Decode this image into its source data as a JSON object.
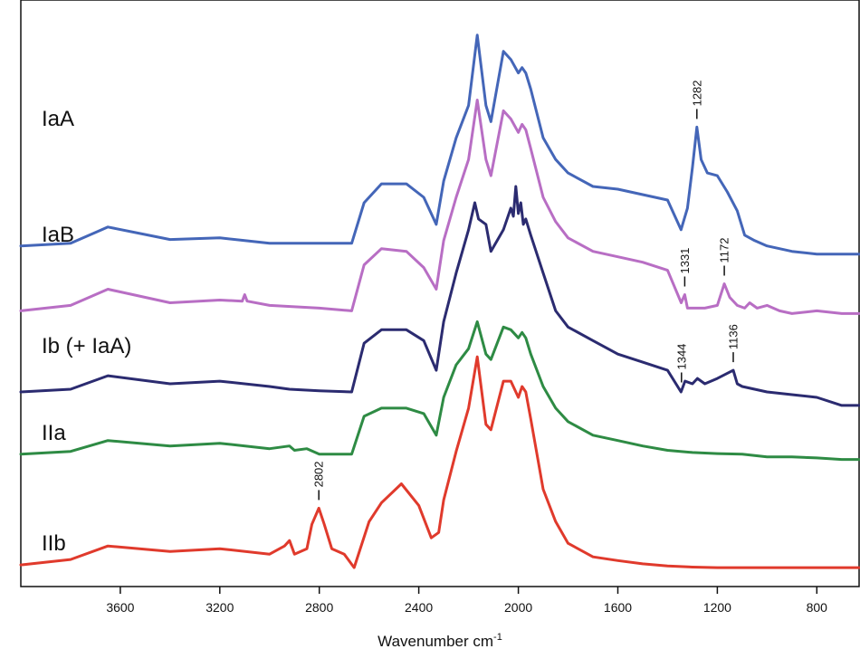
{
  "chart_data": {
    "type": "line",
    "xlabel": "Wavenumber cm",
    "xlabel_superscript": "-1",
    "xlim": [
      4000,
      630
    ],
    "x_reversed": true,
    "y_axis_visible": false,
    "grid": false,
    "xticks": [
      3600,
      3200,
      2800,
      2400,
      2000,
      1600,
      1200,
      800
    ],
    "xtick_labels": [
      "3600",
      "3200",
      "2800",
      "2400",
      "2000",
      "1600",
      "1200",
      "800"
    ],
    "colors": {
      "IaA": "#4466b8",
      "IaB": "#b86ec4",
      "Ib": "#2b2b70",
      "IIa": "#2e8b44",
      "IIb": "#e03a2c"
    },
    "series": [
      {
        "name": "IaA",
        "baseline": 6.0,
        "x": [
          4000,
          3800,
          3650,
          3400,
          3200,
          3100,
          3000,
          2800,
          2670,
          2620,
          2550,
          2450,
          2380,
          2330,
          2300,
          2250,
          2200,
          2165,
          2130,
          2110,
          2060,
          2030,
          2000,
          1985,
          1970,
          1950,
          1900,
          1850,
          1800,
          1700,
          1600,
          1500,
          1400,
          1346,
          1320,
          1300,
          1282,
          1265,
          1240,
          1200,
          1160,
          1120,
          1090,
          1050,
          1000,
          900,
          800,
          700,
          630
        ],
        "values": [
          6.0,
          6.05,
          6.35,
          6.12,
          6.15,
          6.1,
          6.05,
          6.05,
          6.05,
          6.8,
          7.15,
          7.15,
          6.9,
          6.4,
          7.2,
          8.0,
          8.6,
          9.9,
          8.6,
          8.3,
          9.6,
          9.45,
          9.2,
          9.3,
          9.2,
          8.9,
          8.0,
          7.6,
          7.35,
          7.1,
          7.05,
          6.95,
          6.85,
          6.3,
          6.7,
          7.45,
          8.2,
          7.6,
          7.35,
          7.3,
          7.0,
          6.65,
          6.2,
          6.1,
          6.0,
          5.9,
          5.85,
          5.85,
          5.85
        ]
      },
      {
        "name": "IaB",
        "baseline": 4.8,
        "x": [
          4000,
          3800,
          3650,
          3400,
          3200,
          3110,
          3100,
          3090,
          3000,
          2800,
          2670,
          2620,
          2550,
          2450,
          2380,
          2330,
          2300,
          2250,
          2200,
          2165,
          2130,
          2110,
          2060,
          2030,
          2000,
          1985,
          1970,
          1950,
          1900,
          1850,
          1800,
          1700,
          1600,
          1500,
          1400,
          1345,
          1331,
          1320,
          1250,
          1200,
          1172,
          1150,
          1120,
          1090,
          1070,
          1040,
          1000,
          950,
          900,
          800,
          700,
          630
        ],
        "values": [
          4.8,
          4.9,
          5.2,
          4.95,
          5.0,
          4.98,
          5.1,
          4.98,
          4.9,
          4.85,
          4.8,
          5.65,
          5.95,
          5.9,
          5.6,
          5.2,
          6.1,
          6.9,
          7.6,
          8.7,
          7.6,
          7.3,
          8.5,
          8.35,
          8.1,
          8.25,
          8.15,
          7.8,
          6.9,
          6.45,
          6.15,
          5.9,
          5.8,
          5.7,
          5.55,
          4.95,
          5.1,
          4.85,
          4.85,
          4.9,
          5.3,
          5.05,
          4.9,
          4.85,
          4.95,
          4.85,
          4.9,
          4.8,
          4.75,
          4.8,
          4.75,
          4.75
        ]
      },
      {
        "name": "Ib (+ IaA)",
        "baseline": 3.3,
        "x": [
          4000,
          3800,
          3650,
          3400,
          3200,
          3000,
          2920,
          2800,
          2670,
          2620,
          2550,
          2450,
          2380,
          2330,
          2300,
          2250,
          2200,
          2175,
          2160,
          2130,
          2110,
          2060,
          2030,
          2020,
          2010,
          2000,
          1990,
          1980,
          1970,
          1950,
          1900,
          1850,
          1800,
          1700,
          1600,
          1500,
          1400,
          1346,
          1330,
          1300,
          1280,
          1250,
          1200,
          1136,
          1120,
          1100,
          1050,
          1000,
          900,
          800,
          700,
          630
        ],
        "values": [
          3.3,
          3.35,
          3.6,
          3.45,
          3.5,
          3.4,
          3.35,
          3.32,
          3.3,
          4.2,
          4.45,
          4.45,
          4.25,
          3.7,
          4.6,
          5.5,
          6.3,
          6.8,
          6.5,
          6.4,
          5.9,
          6.3,
          6.7,
          6.55,
          7.1,
          6.6,
          6.8,
          6.4,
          6.5,
          6.2,
          5.5,
          4.8,
          4.5,
          4.25,
          4.0,
          3.85,
          3.7,
          3.3,
          3.5,
          3.45,
          3.55,
          3.45,
          3.55,
          3.7,
          3.45,
          3.4,
          3.35,
          3.3,
          3.25,
          3.2,
          3.05,
          3.05
        ]
      },
      {
        "name": "IIa",
        "baseline": 2.15,
        "x": [
          4000,
          3800,
          3650,
          3400,
          3200,
          3000,
          2920,
          2900,
          2850,
          2800,
          2670,
          2620,
          2550,
          2450,
          2380,
          2330,
          2300,
          2250,
          2200,
          2165,
          2130,
          2110,
          2060,
          2030,
          2000,
          1985,
          1970,
          1950,
          1900,
          1850,
          1800,
          1700,
          1600,
          1500,
          1400,
          1300,
          1200,
          1100,
          1000,
          900,
          800,
          700,
          630
        ],
        "values": [
          2.15,
          2.2,
          2.4,
          2.3,
          2.35,
          2.25,
          2.3,
          2.22,
          2.25,
          2.15,
          2.15,
          2.85,
          3.0,
          3.0,
          2.9,
          2.5,
          3.2,
          3.8,
          4.1,
          4.6,
          4.0,
          3.9,
          4.5,
          4.45,
          4.3,
          4.4,
          4.3,
          4.0,
          3.4,
          3.0,
          2.75,
          2.5,
          2.4,
          2.3,
          2.22,
          2.18,
          2.16,
          2.15,
          2.1,
          2.1,
          2.08,
          2.05,
          2.05
        ]
      },
      {
        "name": "IIb",
        "baseline": 0.1,
        "x": [
          4000,
          3800,
          3650,
          3400,
          3200,
          3000,
          2940,
          2920,
          2900,
          2850,
          2830,
          2802,
          2780,
          2750,
          2700,
          2660,
          2600,
          2550,
          2470,
          2400,
          2350,
          2320,
          2300,
          2250,
          2200,
          2165,
          2130,
          2110,
          2060,
          2030,
          2000,
          1985,
          1970,
          1950,
          1900,
          1850,
          1800,
          1700,
          1600,
          1500,
          1400,
          1300,
          1200,
          1100,
          1000,
          900,
          800,
          700,
          630
        ],
        "values": [
          0.1,
          0.2,
          0.45,
          0.35,
          0.4,
          0.3,
          0.45,
          0.55,
          0.3,
          0.4,
          0.85,
          1.15,
          0.85,
          0.4,
          0.3,
          0.05,
          0.9,
          1.25,
          1.6,
          1.2,
          0.6,
          0.7,
          1.3,
          2.2,
          3.0,
          3.95,
          2.7,
          2.6,
          3.5,
          3.5,
          3.2,
          3.4,
          3.3,
          2.8,
          1.5,
          0.9,
          0.5,
          0.25,
          0.18,
          0.12,
          0.08,
          0.06,
          0.05,
          0.05,
          0.05,
          0.05,
          0.05,
          0.05,
          0.05
        ]
      }
    ],
    "peak_annotations": [
      {
        "series": "IaA",
        "label": "1282",
        "x": 1282
      },
      {
        "series": "IaB",
        "label": "1331",
        "x": 1331
      },
      {
        "series": "IaB",
        "label": "1172",
        "x": 1172
      },
      {
        "series": "Ib (+ IaA)",
        "label": "1344",
        "x": 1344
      },
      {
        "series": "Ib (+ IaA)",
        "label": "1136",
        "x": 1136
      },
      {
        "series": "IIb",
        "label": "2802",
        "x": 2802
      }
    ]
  }
}
